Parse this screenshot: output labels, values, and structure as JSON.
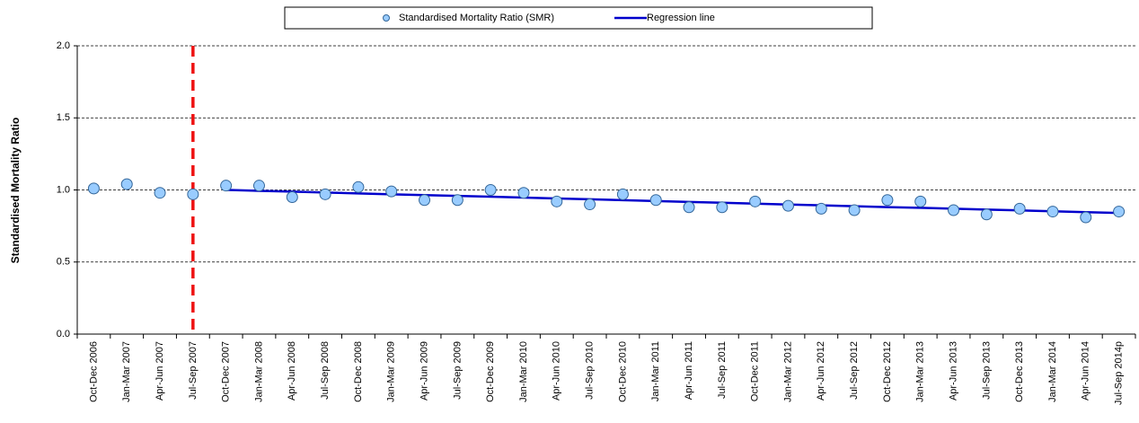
{
  "chart_data": {
    "type": "scatter",
    "y_label": "Standardised Mortality Ratio",
    "categories": [
      "Oct-Dec 2006",
      "Jan-Mar 2007",
      "Apr-Jun 2007",
      "Jul-Sep 2007",
      "Oct-Dec 2007",
      "Jan-Mar 2008",
      "Apr-Jun 2008",
      "Jul-Sep 2008",
      "Oct-Dec 2008",
      "Jan-Mar 2009",
      "Apr-Jun 2009",
      "Jul-Sep 2009",
      "Oct-Dec 2009",
      "Jan-Mar 2010",
      "Apr-Jun 2010",
      "Jul-Sep 2010",
      "Oct-Dec 2010",
      "Jan-Mar 2011",
      "Apr-Jun 2011",
      "Jul-Sep 2011",
      "Oct-Dec 2011",
      "Jan-Mar 2012",
      "Apr-Jun 2012",
      "Jul-Sep 2012",
      "Oct-Dec 2012",
      "Jan-Mar 2013",
      "Apr-Jun 2013",
      "Jul-Sep 2013",
      "Oct-Dec 2013",
      "Jan-Mar 2014",
      "Apr-Jun 2014",
      "Jul-Sep 2014p"
    ],
    "series": [
      {
        "name": "Standardised Mortality Ratio (SMR)",
        "kind": "marker",
        "color": "#99ccff",
        "stroke": "#336699",
        "values": [
          1.01,
          1.04,
          0.98,
          0.97,
          1.03,
          1.03,
          0.95,
          0.97,
          1.02,
          0.99,
          0.93,
          0.93,
          1.0,
          0.98,
          0.92,
          0.9,
          0.97,
          0.93,
          0.88,
          0.88,
          0.92,
          0.89,
          0.87,
          0.86,
          0.93,
          0.92,
          0.86,
          0.83,
          0.87,
          0.85,
          0.81,
          0.85
        ]
      },
      {
        "name": "Regression line",
        "kind": "line",
        "color": "#0000cc",
        "values": [
          null,
          null,
          null,
          null,
          1.0,
          0.994,
          0.988,
          0.982,
          0.976,
          0.97,
          0.964,
          0.959,
          0.953,
          0.947,
          0.941,
          0.935,
          0.929,
          0.923,
          0.917,
          0.911,
          0.905,
          0.899,
          0.893,
          0.887,
          0.881,
          0.876,
          0.87,
          0.864,
          0.858,
          0.852,
          0.846,
          0.84
        ]
      }
    ],
    "ylim": [
      0,
      2
    ],
    "yticks": [
      {
        "value": 0,
        "label": "0.0"
      },
      0.5,
      {
        "value": 1,
        "label": "1.0"
      },
      1.5,
      {
        "value": 2,
        "label": "2.0"
      }
    ],
    "grid": true,
    "marker_line": {
      "category": "Jul-Sep 2007",
      "color": "#ee1111"
    },
    "legend": "top"
  }
}
